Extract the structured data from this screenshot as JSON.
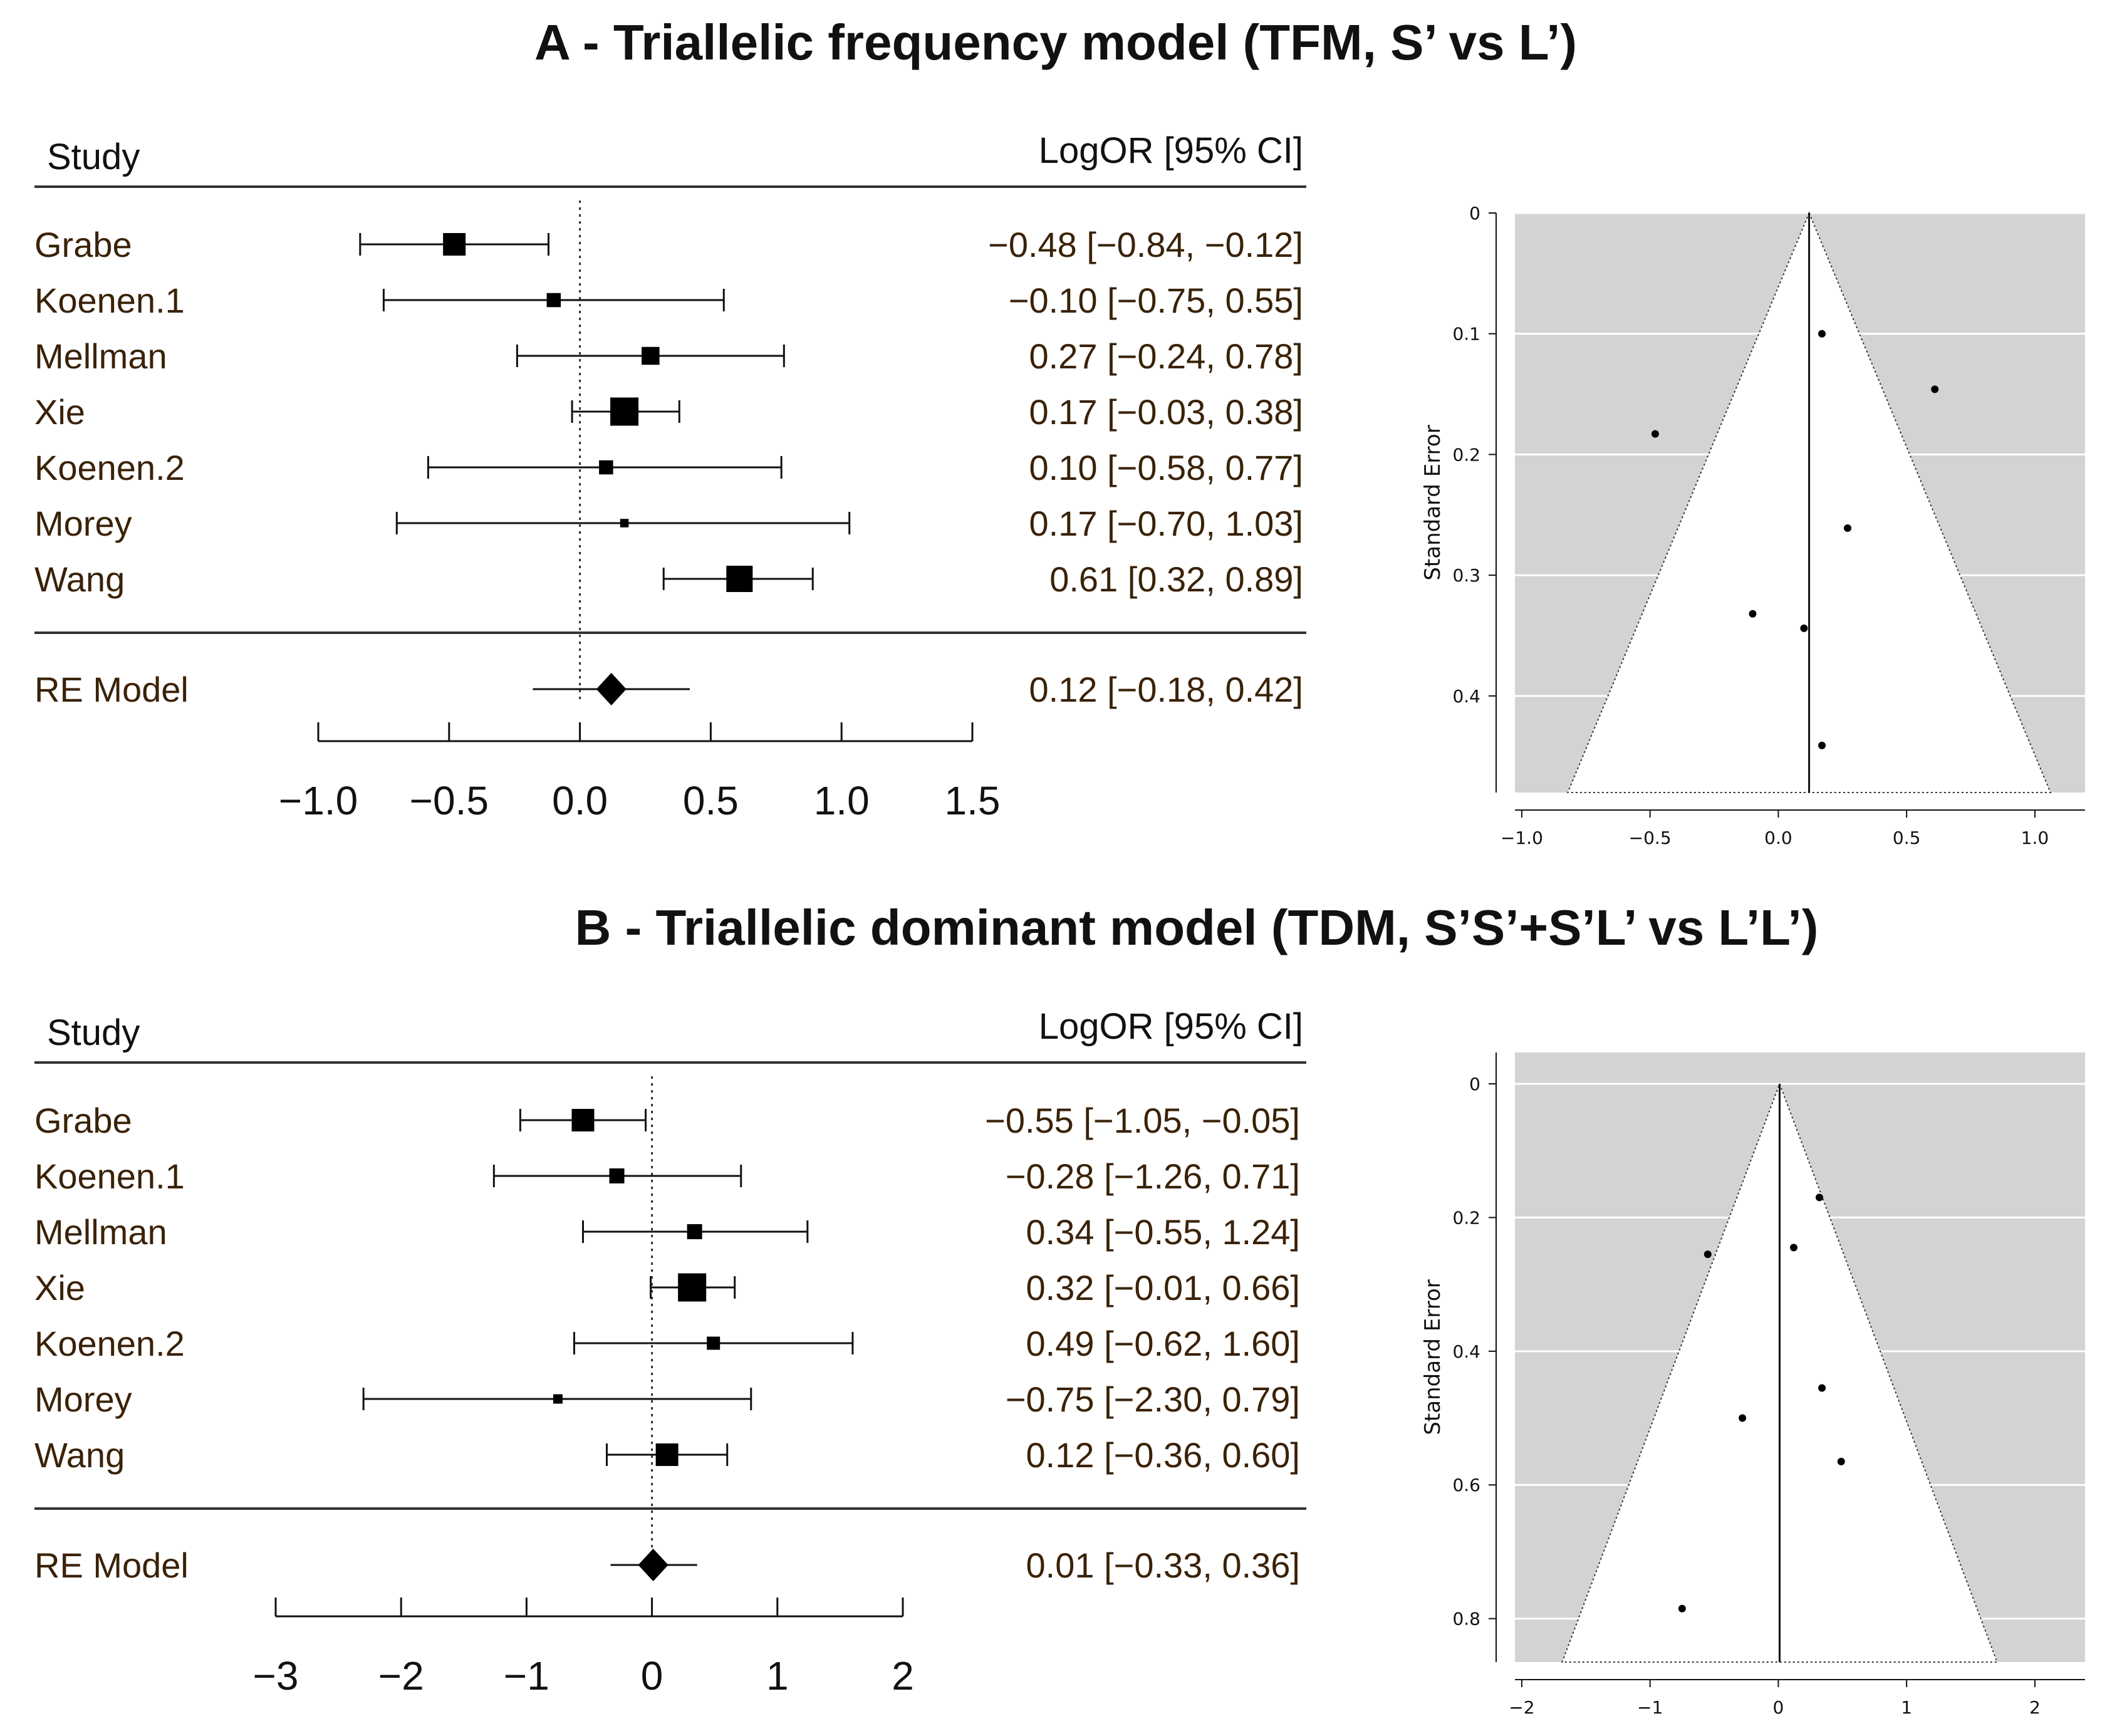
{
  "chart_data": [
    {
      "type": "forest",
      "title": "A - Triallelic frequency model (TFM, S’ vs L’)",
      "header_left": "Study",
      "header_right": "LogOR [95% CI]",
      "xlim": [
        -1.0,
        1.5
      ],
      "xticks": [
        -1.0,
        -0.5,
        0.0,
        0.5,
        1.0,
        1.5
      ],
      "xtick_labels": [
        "−1.0",
        "−0.5",
        "0.0",
        "0.5",
        "1.0",
        "1.5"
      ],
      "studies": [
        {
          "name": "Grabe",
          "est": -0.48,
          "lo": -0.84,
          "hi": -0.12,
          "weight": 1.0,
          "label": "−0.48 [−0.84, −0.12]"
        },
        {
          "name": "Koenen.1",
          "est": -0.1,
          "lo": -0.75,
          "hi": 0.55,
          "weight": 0.55,
          "label": "−0.10 [−0.75, 0.55]"
        },
        {
          "name": "Mellman",
          "est": 0.27,
          "lo": -0.24,
          "hi": 0.78,
          "weight": 0.75,
          "label": "0.27 [−0.24, 0.78]"
        },
        {
          "name": "Xie",
          "est": 0.17,
          "lo": -0.03,
          "hi": 0.38,
          "weight": 1.3,
          "label": "0.17 [−0.03, 0.38]"
        },
        {
          "name": "Koenen.2",
          "est": 0.1,
          "lo": -0.58,
          "hi": 0.77,
          "weight": 0.55,
          "label": "0.10 [−0.58, 0.77]"
        },
        {
          "name": "Morey",
          "est": 0.17,
          "lo": -0.7,
          "hi": 1.03,
          "weight": 0.25,
          "label": "0.17 [−0.70, 1.03]"
        },
        {
          "name": "Wang",
          "est": 0.61,
          "lo": 0.32,
          "hi": 0.89,
          "weight": 1.2,
          "label": "0.61 [0.32, 0.89]"
        }
      ],
      "summary": {
        "name": "RE Model",
        "est": 0.12,
        "lo": -0.18,
        "hi": 0.42,
        "label": "0.12 [−0.18, 0.42]"
      },
      "funnel": {
        "ylabel": "Standard Error",
        "xlim": [
          -1.0,
          1.0
        ],
        "xticks": [
          -1.0,
          -0.5,
          0.0,
          0.5,
          1.0
        ],
        "xtick_labels": [
          "−1.0",
          "−0.5",
          "0.0",
          "0.5",
          "1.0"
        ],
        "ylim": [
          0,
          0.48
        ],
        "yticks": [
          0,
          0.1,
          0.2,
          0.3,
          0.4
        ],
        "ytick_labels": [
          "0",
          "0.1",
          "0.2",
          "0.3",
          "0.4"
        ],
        "center": 0.12,
        "points": [
          {
            "x": 0.17,
            "se": 0.1
          },
          {
            "x": 0.61,
            "se": 0.146
          },
          {
            "x": -0.48,
            "se": 0.183
          },
          {
            "x": 0.27,
            "se": 0.261
          },
          {
            "x": -0.1,
            "se": 0.332
          },
          {
            "x": 0.1,
            "se": 0.344
          },
          {
            "x": 0.17,
            "se": 0.441
          }
        ]
      }
    },
    {
      "type": "forest",
      "title": "B - Triallelic dominant model (TDM, S’S’+S’L’ vs L’L’)",
      "header_left": "Study",
      "header_right": "LogOR [95% CI]",
      "xlim": [
        -3,
        2
      ],
      "xticks": [
        -3,
        -2,
        -1,
        0,
        1,
        2
      ],
      "xtick_labels": [
        "−3",
        "−2",
        "−1",
        "0",
        "1",
        "2"
      ],
      "studies": [
        {
          "name": "Grabe",
          "est": -0.55,
          "lo": -1.05,
          "hi": -0.05,
          "weight": 1.0,
          "label": "−0.55 [−1.05, −0.05]"
        },
        {
          "name": "Koenen.1",
          "est": -0.28,
          "lo": -1.26,
          "hi": 0.71,
          "weight": 0.6,
          "label": "−0.28 [−1.26, 0.71]"
        },
        {
          "name": "Mellman",
          "est": 0.34,
          "lo": -0.55,
          "hi": 1.24,
          "weight": 0.6,
          "label": "0.34 [−0.55, 1.24]"
        },
        {
          "name": "Xie",
          "est": 0.32,
          "lo": -0.01,
          "hi": 0.66,
          "weight": 1.3,
          "label": "0.32 [−0.01, 0.66]"
        },
        {
          "name": "Koenen.2",
          "est": 0.49,
          "lo": -0.62,
          "hi": 1.6,
          "weight": 0.5,
          "label": "0.49 [−0.62, 1.60]"
        },
        {
          "name": "Morey",
          "est": -0.75,
          "lo": -2.3,
          "hi": 0.79,
          "weight": 0.3,
          "label": "−0.75 [−2.30, 0.79]"
        },
        {
          "name": "Wang",
          "est": 0.12,
          "lo": -0.36,
          "hi": 0.6,
          "weight": 1.0,
          "label": "0.12 [−0.36, 0.60]"
        }
      ],
      "summary": {
        "name": "RE Model",
        "est": 0.01,
        "lo": -0.33,
        "hi": 0.36,
        "label": "0.01 [−0.33, 0.36]"
      },
      "funnel": {
        "ylabel": "Standard Error",
        "xlim": [
          -2,
          2
        ],
        "xticks": [
          -2,
          -1,
          0,
          1,
          2
        ],
        "xtick_labels": [
          "−2",
          "−1",
          "0",
          "1",
          "2"
        ],
        "ylim": [
          0,
          0.865
        ],
        "yticks": [
          0,
          0.2,
          0.4,
          0.6,
          0.8
        ],
        "ytick_labels": [
          "0",
          "0.2",
          "0.4",
          "0.6",
          "0.8"
        ],
        "center": 0.01,
        "points": [
          {
            "x": 0.32,
            "se": 0.17
          },
          {
            "x": 0.12,
            "se": 0.245
          },
          {
            "x": -0.55,
            "se": 0.255
          },
          {
            "x": 0.34,
            "se": 0.455
          },
          {
            "x": -0.28,
            "se": 0.5
          },
          {
            "x": 0.49,
            "se": 0.565
          },
          {
            "x": -0.75,
            "se": 0.785
          }
        ]
      }
    }
  ]
}
